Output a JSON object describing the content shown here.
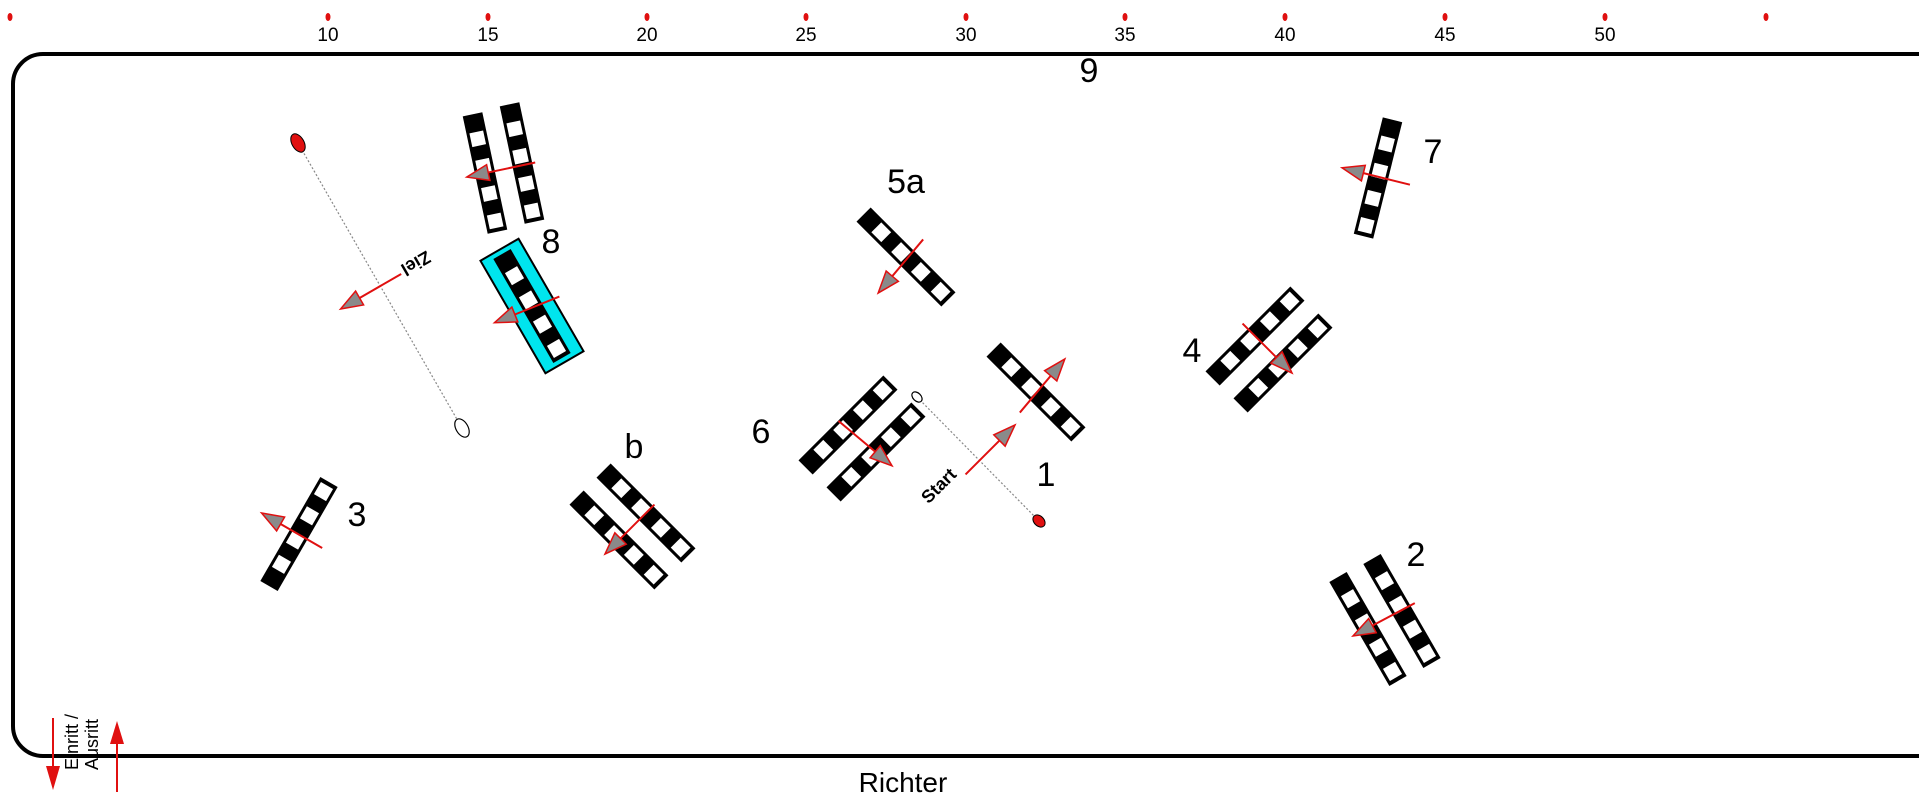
{
  "scale": {
    "labels": [
      "10",
      "15",
      "20",
      "25",
      "30",
      "35",
      "40",
      "45",
      "50"
    ]
  },
  "labels": {
    "judge": "Richter",
    "start": "Start",
    "finish": "Ziel",
    "entry_line1": "Einritt /",
    "entry_line2": "Ausritt"
  },
  "obstacles": {
    "o1": "1",
    "o2": "2",
    "o3": "3",
    "o4": "4",
    "o5a": "5a",
    "o6": "6",
    "o7": "7",
    "o8": "8",
    "o9": "9",
    "ob": "b"
  },
  "colors": {
    "arrow": "#e01010",
    "arrow_fill": "#8a8a8a",
    "highlight": "#00e5ee",
    "marker": "#e01010",
    "pole_dark": "#000000",
    "pole_light": "#ffffff"
  }
}
